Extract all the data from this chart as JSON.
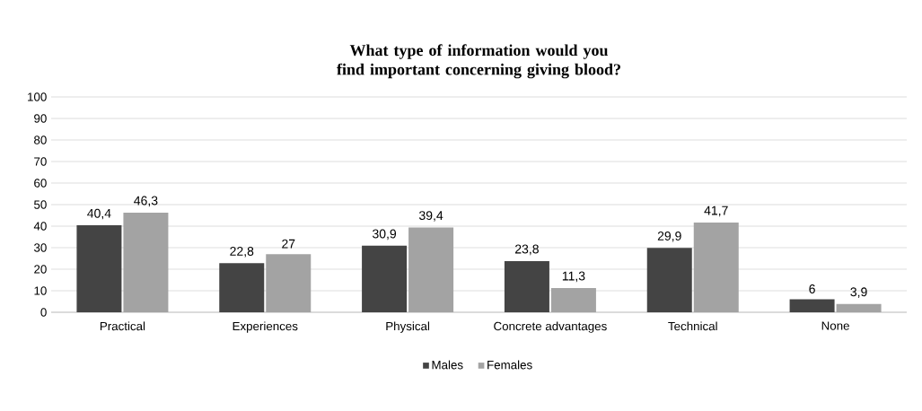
{
  "chart_data": {
    "type": "bar",
    "title": "What type of information would you find important concerning giving blood?",
    "categories": [
      "Practical",
      "Experiences",
      "Physical",
      "Concrete advantages",
      "Technical",
      "None"
    ],
    "series": [
      {
        "name": "Males",
        "color": "#444444",
        "values": [
          40.4,
          22.8,
          30.9,
          23.8,
          29.9,
          6
        ],
        "value_labels": [
          "40,4",
          "22,8",
          "30,9",
          "23,8",
          "29,9",
          "6"
        ]
      },
      {
        "name": "Females",
        "color": "#a3a3a3",
        "values": [
          46.3,
          27,
          39.4,
          11.3,
          41.7,
          3.9
        ],
        "value_labels": [
          "46,3",
          "27",
          "39,4",
          "11,3",
          "41,7",
          "3,9"
        ]
      }
    ],
    "ylim": [
      0,
      100
    ],
    "yticks": [
      0,
      10,
      20,
      30,
      40,
      50,
      60,
      70,
      80,
      90,
      100
    ],
    "grid": "y",
    "legend": "bottom"
  }
}
